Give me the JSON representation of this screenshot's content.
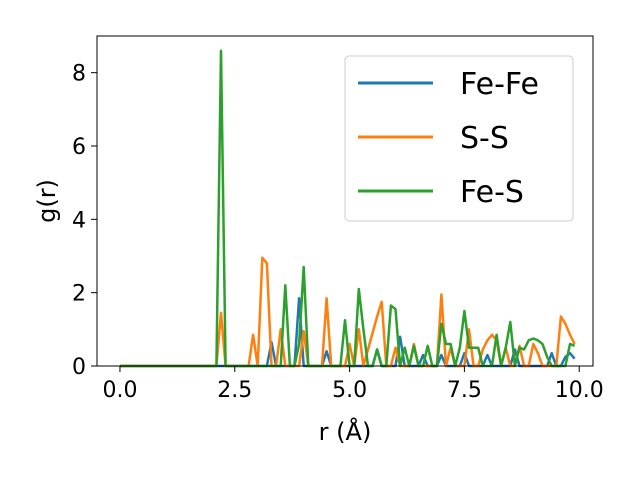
{
  "chart_data": {
    "type": "line",
    "title": "",
    "xlabel": "r (Å)",
    "ylabel": "g(r)",
    "xlim": [
      -0.5,
      10.3
    ],
    "ylim": [
      0,
      9
    ],
    "xticks": [
      0.0,
      2.5,
      5.0,
      7.5,
      10.0
    ],
    "xtick_labels": [
      "0.0",
      "2.5",
      "5.0",
      "7.5",
      "10.0"
    ],
    "yticks": [
      0,
      2,
      4,
      6,
      8
    ],
    "ytick_labels": [
      "0",
      "2",
      "4",
      "6",
      "8"
    ],
    "grid": false,
    "legend": "top-right",
    "series": [
      {
        "name": "Fe-Fe",
        "color": "#1f77b4",
        "x": [
          0.0,
          3.2,
          3.3,
          3.4,
          3.5,
          3.8,
          3.9,
          4.0,
          4.1,
          4.4,
          4.5,
          4.6,
          5.5,
          5.6,
          5.7,
          5.8,
          6.0,
          6.1,
          6.2,
          6.3,
          6.5,
          6.6,
          6.7,
          6.9,
          7.0,
          7.1,
          7.4,
          7.5,
          7.6,
          7.9,
          8.0,
          8.1,
          8.5,
          8.6,
          8.7,
          9.3,
          9.4,
          9.5,
          9.6,
          9.7,
          9.8,
          9.9
        ],
        "y": [
          0.0,
          0.0,
          0.65,
          0.0,
          0.0,
          0.0,
          1.85,
          0.0,
          0.0,
          0.0,
          0.4,
          0.0,
          0.0,
          0.45,
          0.0,
          0.0,
          0.0,
          0.8,
          0.0,
          0.0,
          0.0,
          0.3,
          0.0,
          0.0,
          0.3,
          0.0,
          0.0,
          0.35,
          0.0,
          0.0,
          0.3,
          0.0,
          0.0,
          0.45,
          0.0,
          0.0,
          0.35,
          0.0,
          0.0,
          0.25,
          0.35,
          0.2
        ]
      },
      {
        "name": "S-S",
        "color": "#ff7f0e",
        "x": [
          0.0,
          2.1,
          2.2,
          2.3,
          2.8,
          2.9,
          3.0,
          3.1,
          3.2,
          3.3,
          3.4,
          3.5,
          3.6,
          3.9,
          4.0,
          4.1,
          4.4,
          4.5,
          4.6,
          4.9,
          5.0,
          5.1,
          5.2,
          5.3,
          5.6,
          5.7,
          5.8,
          5.9,
          6.0,
          6.1,
          6.2,
          6.3,
          6.4,
          6.5,
          6.6,
          6.7,
          6.9,
          7.0,
          7.1,
          7.2,
          7.3,
          7.4,
          7.5,
          7.6,
          7.7,
          7.8,
          7.9,
          8.0,
          8.1,
          8.2,
          8.3,
          8.4,
          8.5,
          8.6,
          8.7,
          8.8,
          8.9,
          9.0,
          9.1,
          9.2,
          9.3,
          9.4,
          9.5,
          9.6,
          9.7,
          9.8,
          9.9
        ],
        "y": [
          0.0,
          0.0,
          1.45,
          0.0,
          0.0,
          0.85,
          0.0,
          2.95,
          2.8,
          0.0,
          0.0,
          1.0,
          0.0,
          0.0,
          0.95,
          0.0,
          0.0,
          1.85,
          0.0,
          0.0,
          0.6,
          0.0,
          1.0,
          0.0,
          1.35,
          1.75,
          0.0,
          0.0,
          0.5,
          0.0,
          0.0,
          0.0,
          0.6,
          0.0,
          0.0,
          0.0,
          0.0,
          1.95,
          0.0,
          0.5,
          0.0,
          0.0,
          0.0,
          1.0,
          0.0,
          0.0,
          0.45,
          0.7,
          0.85,
          0.7,
          0.0,
          0.5,
          0.0,
          0.0,
          0.55,
          0.0,
          0.0,
          0.6,
          0.35,
          0.0,
          0.0,
          0.0,
          0.0,
          1.35,
          1.15,
          0.85,
          0.6
        ]
      },
      {
        "name": "Fe-S",
        "color": "#2ca02c",
        "x": [
          0.0,
          2.1,
          2.2,
          2.3,
          3.5,
          3.6,
          3.7,
          3.8,
          3.9,
          4.0,
          4.1,
          4.2,
          4.8,
          4.9,
          5.0,
          5.1,
          5.2,
          5.3,
          5.4,
          5.5,
          5.6,
          5.7,
          5.8,
          5.9,
          6.0,
          6.1,
          6.2,
          6.3,
          6.4,
          6.5,
          6.6,
          6.7,
          6.8,
          6.9,
          7.0,
          7.1,
          7.2,
          7.3,
          7.4,
          7.5,
          7.6,
          7.7,
          7.8,
          7.9,
          8.0,
          8.1,
          8.2,
          8.3,
          8.4,
          8.5,
          8.6,
          8.7,
          8.8,
          8.9,
          9.0,
          9.1,
          9.2,
          9.3,
          9.4,
          9.5,
          9.6,
          9.7,
          9.8,
          9.9
        ],
        "y": [
          0.0,
          0.0,
          8.6,
          0.0,
          0.0,
          2.2,
          0.0,
          0.0,
          0.6,
          2.7,
          0.0,
          0.0,
          0.0,
          1.25,
          0.0,
          0.0,
          2.1,
          1.0,
          0.0,
          0.0,
          0.45,
          0.0,
          0.0,
          1.65,
          1.55,
          0.0,
          0.5,
          0.0,
          0.55,
          0.0,
          0.0,
          0.55,
          0.0,
          0.0,
          1.15,
          0.6,
          0.6,
          0.0,
          0.5,
          1.5,
          0.5,
          0.5,
          0.5,
          0.0,
          0.0,
          0.0,
          0.85,
          0.0,
          0.5,
          1.2,
          0.0,
          0.5,
          0.45,
          0.7,
          0.75,
          0.7,
          0.6,
          0.25,
          0.0,
          0.0,
          0.0,
          0.0,
          0.6,
          0.55
        ]
      }
    ]
  }
}
